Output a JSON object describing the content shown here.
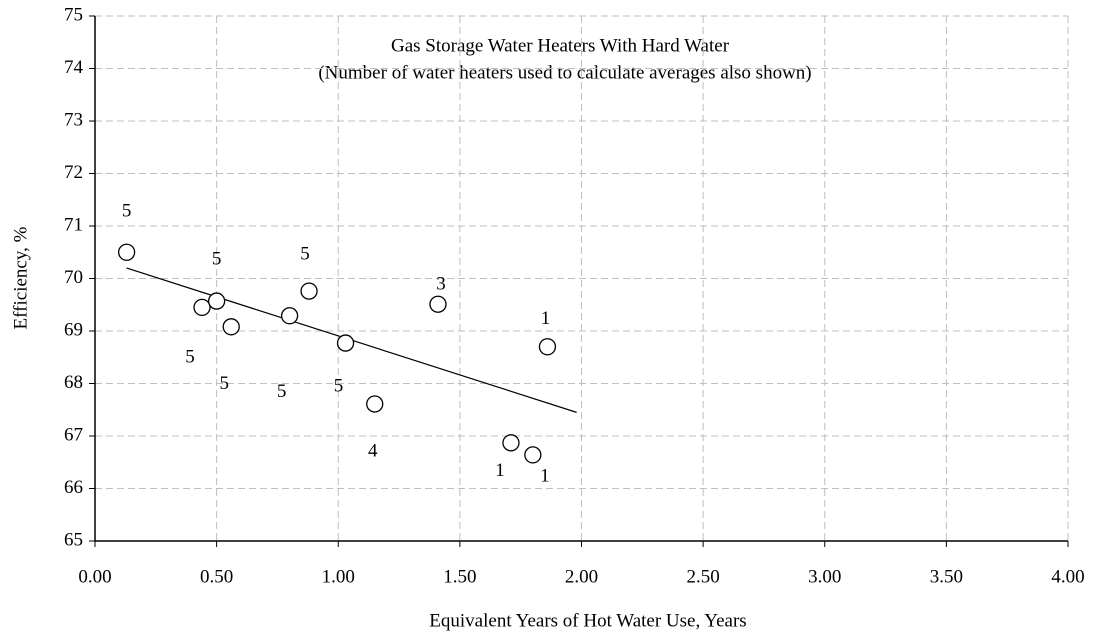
{
  "chart_data": {
    "type": "scatter",
    "title": "Gas Storage Water Heaters With Hard Water",
    "subtitle": "(Number of water heaters used to calculate averages also shown)",
    "x_label": "Equivalent Years of Hot Water Use, Years",
    "y_label": "Efficiency, %",
    "series": [
      {
        "x": [
          0.13,
          0.44,
          0.5,
          0.56,
          0.8,
          0.88,
          1.03,
          1.15,
          1.41,
          1.86,
          1.71,
          1.8
        ],
        "values": [
          70.5,
          69.45,
          69.57,
          69.08,
          69.29,
          69.76,
          68.77,
          67.61,
          69.51,
          68.7,
          66.87,
          66.64
        ],
        "labels": [
          "5",
          "5",
          "5",
          "5",
          "5",
          "5",
          "5",
          "4",
          "3",
          "1",
          "1",
          "1"
        ],
        "color": "#000000"
      }
    ],
    "trendline": {
      "x": [
        0.13,
        1.98
      ],
      "values": [
        70.2,
        67.45
      ],
      "color": "#000000"
    },
    "xlim": [
      0,
      4
    ],
    "ylim": [
      65,
      75
    ],
    "xticks": [
      {
        "value": 0,
        "label": "0.00"
      },
      {
        "value": 0.5,
        "label": "0.50"
      },
      {
        "value": 1,
        "label": "1.00"
      },
      {
        "value": 1.5,
        "label": "1.50"
      },
      {
        "value": 2,
        "label": "2.00"
      },
      {
        "value": 2.5,
        "label": "2.50"
      },
      {
        "value": 3,
        "label": "3.00"
      },
      {
        "value": 3.5,
        "label": "3.50"
      },
      {
        "value": 4,
        "label": "4.00"
      }
    ],
    "yticks": [
      65,
      66,
      67,
      68,
      69,
      70,
      71,
      72,
      73,
      74,
      75
    ],
    "grid": true
  }
}
